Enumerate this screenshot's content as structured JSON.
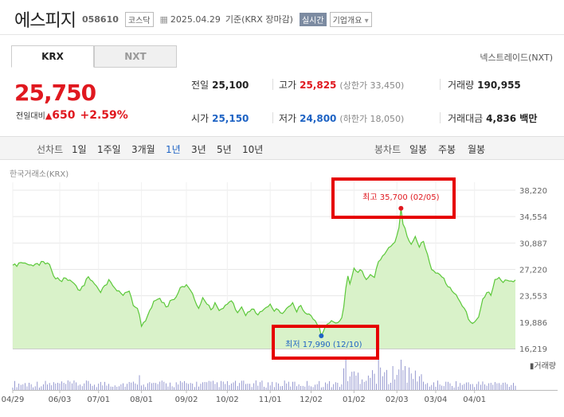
{
  "header": {
    "name": "에스피지",
    "code": "058610",
    "market": "코스닥",
    "date": "2025.04.29",
    "basis": "기준(KRX 장마감)",
    "realtime_label": "실시간",
    "company_label": "기업개요",
    "dropdown_glyph": "▾"
  },
  "tabs": [
    {
      "label": "KRX"
    },
    {
      "label": "NXT"
    }
  ],
  "nextrade_label": "넥스트레이드(NXT)",
  "quote": {
    "price": "25,750",
    "change_label": "전일대비",
    "change_arrow": "▲",
    "change": "650",
    "change_pct": "+2.59%"
  },
  "stats": {
    "prev_label": "전일",
    "prev": "25,100",
    "high_label": "고가",
    "high": "25,825",
    "upper_limit": "(상한가 33,450)",
    "volume_label": "거래량",
    "volume": "190,955",
    "open_label": "시가",
    "open": "25,150",
    "low_label": "저가",
    "low": "24,800",
    "lower_limit": "(하한가 18,050)",
    "amount_label": "거래대금",
    "amount": "4,836 백만"
  },
  "periods": {
    "line_label": "선차트",
    "line_items": [
      "1일",
      "1주일",
      "3개월",
      "1년",
      "3년",
      "5년",
      "10년"
    ],
    "selected": "1년",
    "candle_label": "봉차트",
    "candle_items": [
      "일봉",
      "주봉",
      "월봉"
    ]
  },
  "colors": {
    "up": "#e0181f",
    "down": "#1e63c4",
    "line": "#5cc83a",
    "fill": "#d9f2c9",
    "volume": "#7b7fc4",
    "highlight": "#e60000"
  },
  "chart_data": {
    "type": "area",
    "exchange_label": "한국거래소(KRX)",
    "ylim": [
      16219,
      38220
    ],
    "y_ticks": [
      "38,220",
      "34,554",
      "30,887",
      "27,220",
      "23,553",
      "19,886",
      "16,219"
    ],
    "y_tick_values": [
      38220,
      34554,
      30887,
      27220,
      23553,
      19886,
      16219
    ],
    "x_tick_labels": [
      "04/29",
      "06/03",
      "07/01",
      "08/01",
      "09/02",
      "10/02",
      "11/01",
      "12/02",
      "01/02",
      "02/03",
      "03/04",
      "04/01"
    ],
    "x_tick_index": [
      0,
      23,
      42,
      63,
      85,
      105,
      126,
      146,
      167,
      188,
      207,
      226
    ],
    "n_days": 247,
    "high_annotation": "최고 35,700 (02/05)",
    "high_value": 35700,
    "high_index": 190,
    "low_annotation": "최저 17,990 (12/10)",
    "low_value": 17990,
    "low_index": 151,
    "volume_label": "거래량",
    "price_keypoints": [
      [
        0,
        27800
      ],
      [
        5,
        28100
      ],
      [
        10,
        27700
      ],
      [
        15,
        28300
      ],
      [
        18,
        27900
      ],
      [
        20,
        26300
      ],
      [
        23,
        25700
      ],
      [
        26,
        26000
      ],
      [
        29,
        25500
      ],
      [
        33,
        24300
      ],
      [
        37,
        26200
      ],
      [
        40,
        25200
      ],
      [
        43,
        24000
      ],
      [
        47,
        25800
      ],
      [
        50,
        24600
      ],
      [
        54,
        23600
      ],
      [
        57,
        24200
      ],
      [
        59,
        22200
      ],
      [
        61,
        21800
      ],
      [
        62,
        20900
      ],
      [
        63,
        19300
      ],
      [
        66,
        20800
      ],
      [
        69,
        22800
      ],
      [
        72,
        23200
      ],
      [
        75,
        22000
      ],
      [
        78,
        23000
      ],
      [
        80,
        23400
      ],
      [
        82,
        24700
      ],
      [
        85,
        25100
      ],
      [
        87,
        24300
      ],
      [
        89,
        23000
      ],
      [
        91,
        21800
      ],
      [
        93,
        23300
      ],
      [
        95,
        22400
      ],
      [
        97,
        21600
      ],
      [
        99,
        22600
      ],
      [
        101,
        21500
      ],
      [
        103,
        21800
      ],
      [
        106,
        22700
      ],
      [
        108,
        22500
      ],
      [
        110,
        21200
      ],
      [
        112,
        22000
      ],
      [
        114,
        20800
      ],
      [
        117,
        21700
      ],
      [
        120,
        20900
      ],
      [
        123,
        21700
      ],
      [
        126,
        22400
      ],
      [
        128,
        21400
      ],
      [
        130,
        21600
      ],
      [
        132,
        21100
      ],
      [
        134,
        21800
      ],
      [
        137,
        22600
      ],
      [
        139,
        21300
      ],
      [
        141,
        22200
      ],
      [
        143,
        21200
      ],
      [
        146,
        20800
      ],
      [
        148,
        20100
      ],
      [
        150,
        19200
      ],
      [
        151,
        17990
      ],
      [
        153,
        19300
      ],
      [
        156,
        20100
      ],
      [
        159,
        19800
      ],
      [
        161,
        20500
      ],
      [
        162,
        22000
      ],
      [
        163,
        24600
      ],
      [
        164,
        26300
      ],
      [
        165,
        25200
      ],
      [
        167,
        27400
      ],
      [
        169,
        26800
      ],
      [
        171,
        27000
      ],
      [
        173,
        25800
      ],
      [
        175,
        26500
      ],
      [
        177,
        26100
      ],
      [
        179,
        28300
      ],
      [
        181,
        29100
      ],
      [
        183,
        29800
      ],
      [
        185,
        30400
      ],
      [
        187,
        31000
      ],
      [
        189,
        33000
      ],
      [
        190,
        35700
      ],
      [
        191,
        33500
      ],
      [
        193,
        31800
      ],
      [
        195,
        30700
      ],
      [
        197,
        31800
      ],
      [
        199,
        30300
      ],
      [
        201,
        31100
      ],
      [
        203,
        29300
      ],
      [
        205,
        27200
      ],
      [
        207,
        26700
      ],
      [
        209,
        26500
      ],
      [
        211,
        26000
      ],
      [
        213,
        24800
      ],
      [
        215,
        24200
      ],
      [
        217,
        23700
      ],
      [
        219,
        22700
      ],
      [
        221,
        21800
      ],
      [
        223,
        20300
      ],
      [
        225,
        19700
      ],
      [
        226,
        19900
      ],
      [
        228,
        20600
      ],
      [
        230,
        23100
      ],
      [
        232,
        24000
      ],
      [
        234,
        23600
      ],
      [
        236,
        25800
      ],
      [
        238,
        26100
      ],
      [
        240,
        25400
      ],
      [
        242,
        25700
      ],
      [
        244,
        25600
      ],
      [
        246,
        25750
      ]
    ]
  }
}
